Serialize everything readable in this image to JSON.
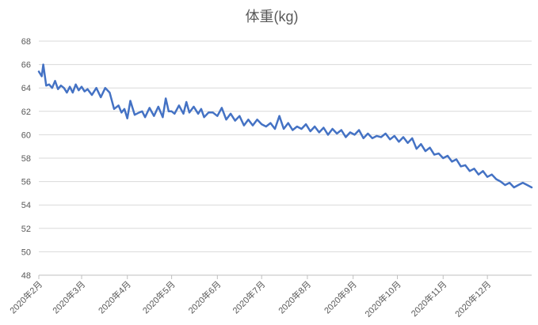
{
  "chart_data": {
    "type": "line",
    "title": "体重(kg)",
    "xlabel": "",
    "ylabel": "",
    "ylim": [
      48,
      68
    ],
    "yticks": [
      48,
      50,
      52,
      54,
      56,
      58,
      60,
      62,
      64,
      66,
      68
    ],
    "xlim": [
      "2020-02-01",
      "2020-12-31"
    ],
    "xtick_dates": [
      "2020-02-01",
      "2020-03-01",
      "2020-04-01",
      "2020-05-01",
      "2020-06-01",
      "2020-07-01",
      "2020-08-01",
      "2020-09-01",
      "2020-10-01",
      "2020-11-01",
      "2020-12-01"
    ],
    "xtick_labels": [
      "2020年2月",
      "2020年3月",
      "2020年4月",
      "2020年5月",
      "2020年6月",
      "2020年7月",
      "2020年8月",
      "2020年9月",
      "2020年10月",
      "2020年11月",
      "2020年12月"
    ],
    "grid": true,
    "legend": "none",
    "line_color": "#4472c4",
    "series": [
      {
        "x": [
          "2020-02-01",
          "2020-02-03",
          "2020-02-04",
          "2020-02-06",
          "2020-02-08",
          "2020-02-10",
          "2020-02-12",
          "2020-02-14",
          "2020-02-16",
          "2020-02-18",
          "2020-02-20",
          "2020-02-22",
          "2020-02-24",
          "2020-02-26",
          "2020-02-28",
          "2020-03-01",
          "2020-03-03",
          "2020-03-05",
          "2020-03-08",
          "2020-03-11",
          "2020-03-14",
          "2020-03-17",
          "2020-03-20",
          "2020-03-23",
          "2020-03-26",
          "2020-03-28",
          "2020-03-30",
          "2020-04-01",
          "2020-04-03",
          "2020-04-06",
          "2020-04-09",
          "2020-04-11",
          "2020-04-13",
          "2020-04-16",
          "2020-04-19",
          "2020-04-22",
          "2020-04-25",
          "2020-04-27",
          "2020-04-29",
          "2020-05-01",
          "2020-05-03",
          "2020-05-06",
          "2020-05-09",
          "2020-05-11",
          "2020-05-13",
          "2020-05-16",
          "2020-05-19",
          "2020-05-21",
          "2020-05-23",
          "2020-05-26",
          "2020-05-29",
          "2020-06-01",
          "2020-06-04",
          "2020-06-07",
          "2020-06-10",
          "2020-06-13",
          "2020-06-16",
          "2020-06-19",
          "2020-06-22",
          "2020-06-25",
          "2020-06-28",
          "2020-07-01",
          "2020-07-04",
          "2020-07-07",
          "2020-07-10",
          "2020-07-13",
          "2020-07-16",
          "2020-07-19",
          "2020-07-22",
          "2020-07-25",
          "2020-07-28",
          "2020-07-31",
          "2020-08-03",
          "2020-08-06",
          "2020-08-09",
          "2020-08-12",
          "2020-08-15",
          "2020-08-18",
          "2020-08-21",
          "2020-08-24",
          "2020-08-27",
          "2020-08-30",
          "2020-09-02",
          "2020-09-05",
          "2020-09-08",
          "2020-09-11",
          "2020-09-14",
          "2020-09-17",
          "2020-09-20",
          "2020-09-23",
          "2020-09-26",
          "2020-09-29",
          "2020-10-02",
          "2020-10-05",
          "2020-10-08",
          "2020-10-11",
          "2020-10-14",
          "2020-10-17",
          "2020-10-20",
          "2020-10-23",
          "2020-10-26",
          "2020-10-29",
          "2020-11-01",
          "2020-11-04",
          "2020-11-07",
          "2020-11-10",
          "2020-11-13",
          "2020-11-16",
          "2020-11-19",
          "2020-11-22",
          "2020-11-25",
          "2020-11-28",
          "2020-12-01",
          "2020-12-04",
          "2020-12-07",
          "2020-12-10",
          "2020-12-13",
          "2020-12-16",
          "2020-12-19",
          "2020-12-22",
          "2020-12-25",
          "2020-12-28",
          "2020-12-31"
        ],
        "values": [
          65.4,
          65.0,
          66.0,
          64.2,
          64.3,
          64.0,
          64.6,
          63.9,
          64.2,
          64.0,
          63.6,
          64.1,
          63.6,
          64.3,
          63.8,
          64.1,
          63.7,
          63.9,
          63.4,
          64.0,
          63.2,
          64.0,
          63.6,
          62.2,
          62.5,
          61.9,
          62.2,
          61.4,
          62.9,
          61.7,
          61.9,
          62.0,
          61.5,
          62.3,
          61.6,
          62.4,
          61.5,
          63.1,
          62.0,
          62.0,
          61.8,
          62.5,
          61.8,
          62.8,
          61.9,
          62.4,
          61.8,
          62.2,
          61.5,
          61.9,
          61.9,
          61.6,
          62.3,
          61.3,
          61.8,
          61.2,
          61.6,
          60.8,
          61.3,
          60.8,
          61.3,
          60.9,
          60.7,
          61.0,
          60.5,
          61.6,
          60.5,
          61.0,
          60.4,
          60.7,
          60.5,
          60.9,
          60.3,
          60.7,
          60.2,
          60.6,
          60.0,
          60.5,
          60.1,
          60.4,
          59.8,
          60.2,
          60.0,
          60.4,
          59.7,
          60.1,
          59.7,
          59.9,
          59.8,
          60.1,
          59.6,
          59.9,
          59.4,
          59.8,
          59.3,
          59.7,
          58.8,
          59.2,
          58.6,
          58.9,
          58.3,
          58.4,
          58.0,
          58.2,
          57.7,
          57.9,
          57.3,
          57.4,
          56.9,
          57.1,
          56.6,
          56.9,
          56.4,
          56.6,
          56.2,
          56.0,
          55.7,
          55.9,
          55.5,
          55.7,
          55.9,
          55.7,
          55.5
        ]
      }
    ]
  }
}
